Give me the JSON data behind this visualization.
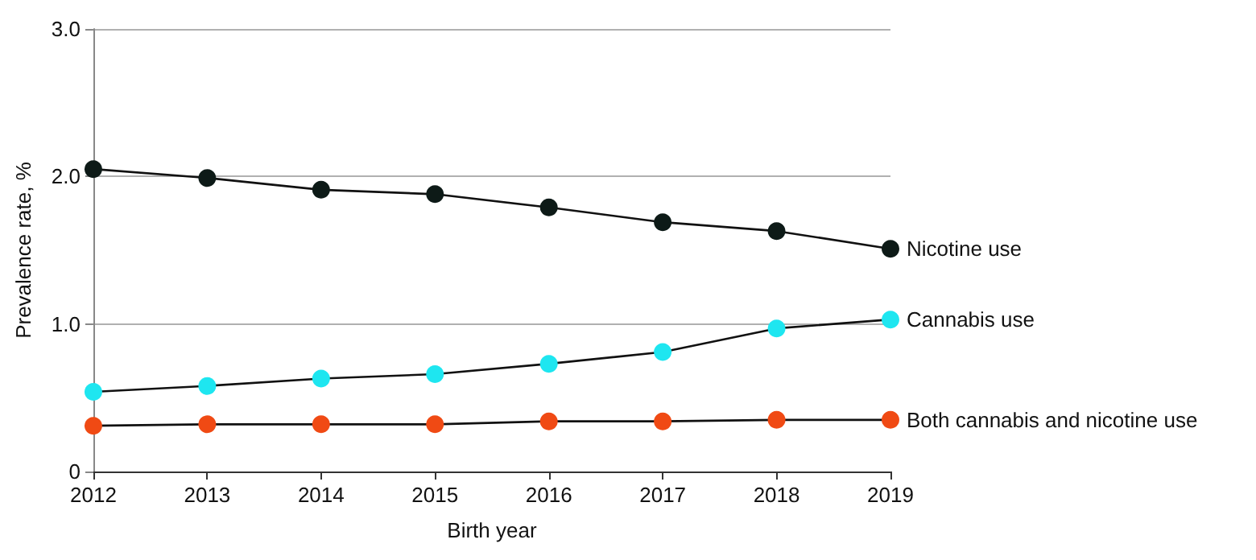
{
  "chart_data": {
    "type": "line",
    "xlabel": "Birth year",
    "ylabel": "Prevalence rate, %",
    "categories": [
      "2012",
      "2013",
      "2014",
      "2015",
      "2016",
      "2017",
      "2018",
      "2019"
    ],
    "series": [
      {
        "name": "Nicotine use",
        "color": "#0d1a17",
        "values": [
          2.05,
          1.99,
          1.91,
          1.88,
          1.79,
          1.69,
          1.63,
          1.51
        ]
      },
      {
        "name": "Cannabis use",
        "color": "#1ee6f0",
        "values": [
          0.54,
          0.58,
          0.63,
          0.66,
          0.73,
          0.81,
          0.97,
          1.03
        ]
      },
      {
        "name": "Both cannabis and nicotine use",
        "color": "#f04a14",
        "values": [
          0.31,
          0.32,
          0.32,
          0.32,
          0.34,
          0.34,
          0.35,
          0.35
        ]
      }
    ],
    "ylim": [
      0,
      3.0
    ],
    "yticks": [
      {
        "value": 0,
        "label": "0"
      },
      {
        "value": 1,
        "label": "1.0"
      },
      {
        "value": 2,
        "label": "2.0"
      },
      {
        "value": 3,
        "label": "3.0"
      }
    ],
    "grid": "y",
    "legend": false,
    "marker": "circle",
    "line_style": "solid"
  }
}
